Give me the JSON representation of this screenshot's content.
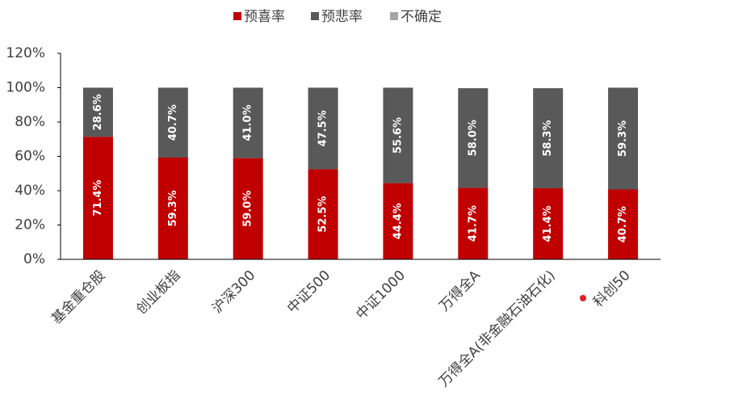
{
  "chart_data": {
    "type": "stacked_bar",
    "categories": [
      "基金重仓股",
      "创业板指",
      "沪深300",
      "中证500",
      "中证1000",
      "万得全A",
      "万得全A(非金融石油石化)",
      "科创50"
    ],
    "series": [
      {
        "name": "预喜率",
        "color": "#c00000",
        "values": [
          71.4,
          59.3,
          59.0,
          52.5,
          44.4,
          41.7,
          41.4,
          40.7
        ],
        "value_labels": [
          "71.4%",
          "59.3%",
          "59.0%",
          "52.5%",
          "44.4%",
          "41.7%",
          "41.4%",
          "40.7%"
        ]
      },
      {
        "name": "预悲率",
        "color": "#595959",
        "values": [
          28.6,
          40.7,
          41.0,
          47.5,
          55.6,
          58.0,
          58.3,
          59.3
        ],
        "value_labels": [
          "28.6%",
          "40.7%",
          "41.0%",
          "47.5%",
          "55.6%",
          "58.0%",
          "58.3%",
          "59.3%"
        ]
      },
      {
        "name": "不确定",
        "color": "#a6a6a6",
        "values": [
          0,
          0,
          0,
          0,
          0,
          0,
          0,
          0
        ]
      }
    ],
    "ylim": [
      0,
      120
    ],
    "yticks": [
      {
        "value": 0,
        "label": "0%"
      },
      {
        "value": 20,
        "label": "20%"
      },
      {
        "value": 40,
        "label": "40%"
      },
      {
        "value": 60,
        "label": "60%"
      },
      {
        "value": 80,
        "label": "80%"
      },
      {
        "value": 100,
        "label": "100%"
      },
      {
        "value": 120,
        "label": "120%"
      }
    ],
    "legend": "top"
  }
}
